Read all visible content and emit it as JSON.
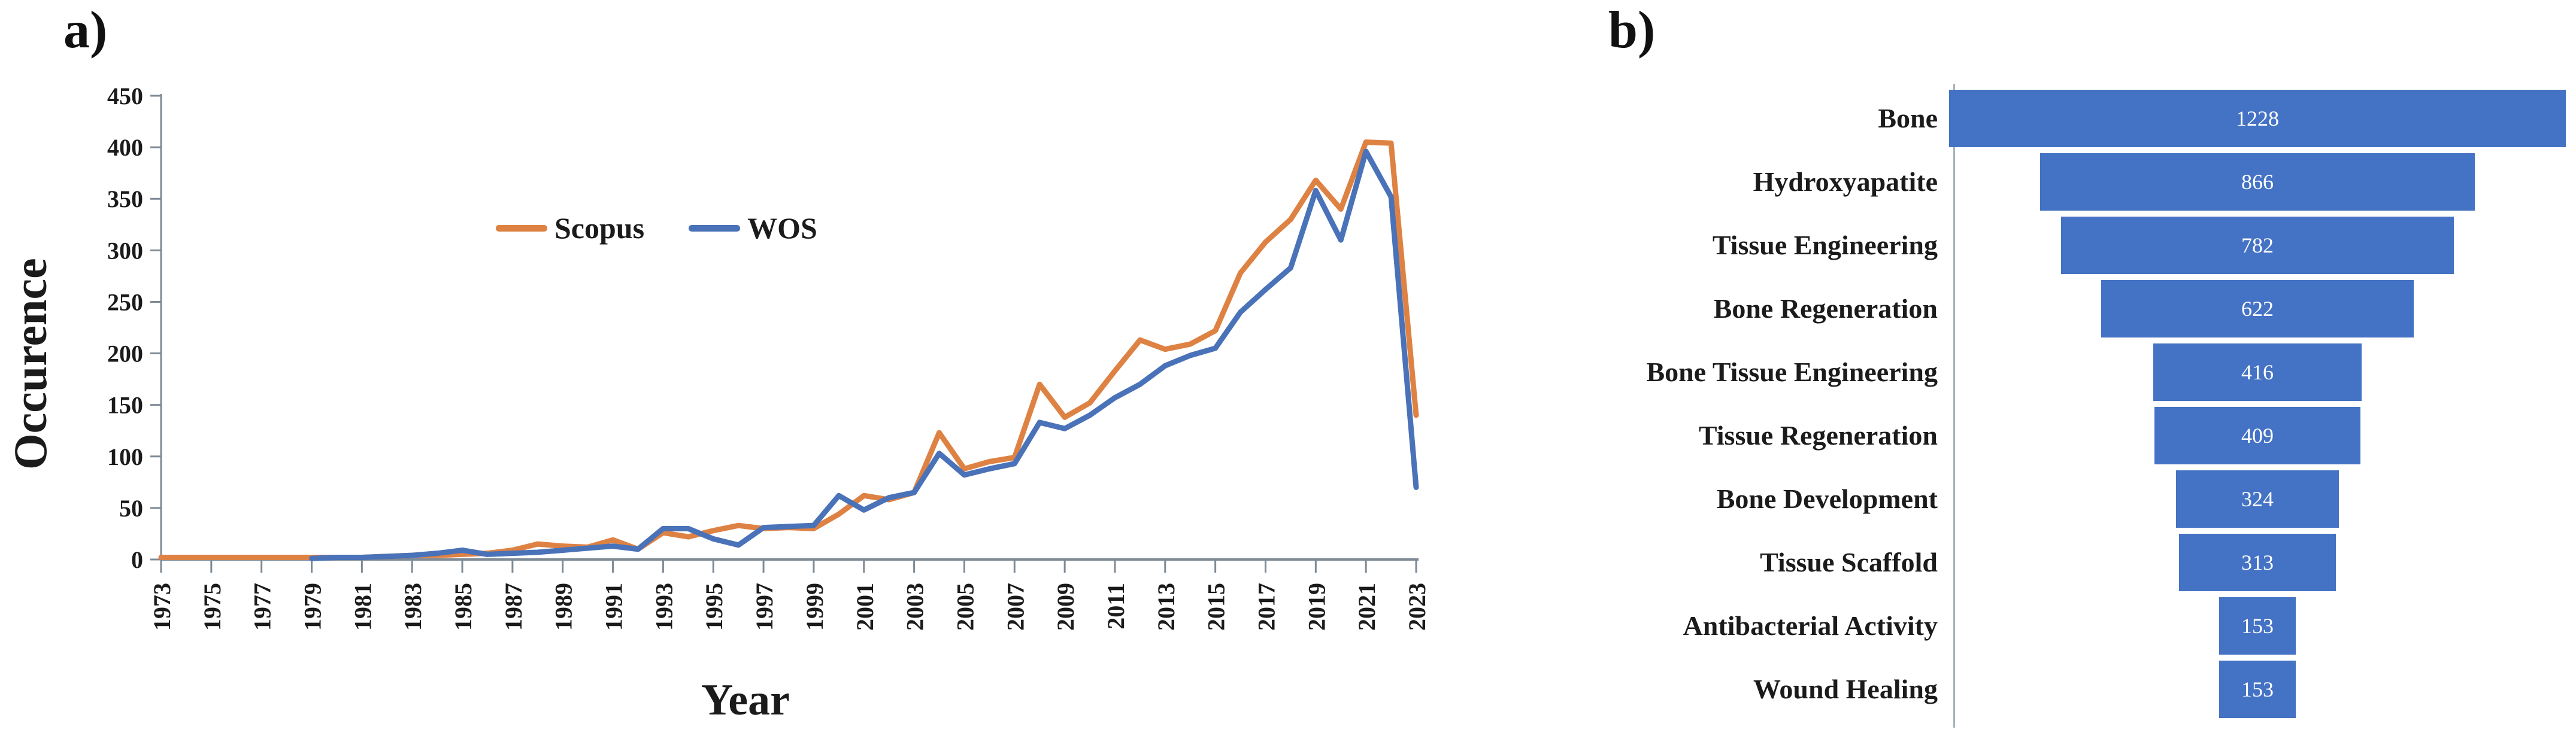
{
  "figure": {
    "panel_a_label": "a)",
    "panel_b_label": "b)"
  },
  "chart_data": [
    {
      "type": "line",
      "title": "",
      "xlabel": "Year",
      "ylabel": "Occurence",
      "ylim": [
        0,
        450
      ],
      "yticks": [
        0,
        50,
        100,
        150,
        200,
        250,
        300,
        350,
        400,
        450
      ],
      "xtick_labels": [
        "1973",
        "1975",
        "1977",
        "1979",
        "1981",
        "1983",
        "1985",
        "1987",
        "1989",
        "1991",
        "1993",
        "1995",
        "1997",
        "1999",
        "2001",
        "2003",
        "2005",
        "2007",
        "2009",
        "2011",
        "2013",
        "2015",
        "2017",
        "2019",
        "2021",
        "2023"
      ],
      "grid": false,
      "legend_position": "inside-top-center",
      "x": [
        1973,
        1974,
        1975,
        1976,
        1977,
        1978,
        1979,
        1980,
        1981,
        1982,
        1983,
        1984,
        1985,
        1986,
        1987,
        1988,
        1989,
        1990,
        1991,
        1992,
        1993,
        1994,
        1995,
        1996,
        1997,
        1998,
        1999,
        2000,
        2001,
        2002,
        2003,
        2004,
        2005,
        2006,
        2007,
        2008,
        2009,
        2010,
        2011,
        2012,
        2013,
        2014,
        2015,
        2016,
        2017,
        2018,
        2019,
        2020,
        2021,
        2022,
        2023
      ],
      "series": [
        {
          "name": "Scopus",
          "color": "#DE8244",
          "values": [
            2,
            2,
            2,
            2,
            2,
            2,
            2,
            2,
            2,
            3,
            4,
            4,
            5,
            6,
            9,
            15,
            13,
            12,
            19,
            10,
            26,
            22,
            28,
            33,
            30,
            31,
            30,
            44,
            62,
            58,
            65,
            123,
            88,
            95,
            99,
            170,
            138,
            152,
            183,
            213,
            204,
            209,
            222,
            278,
            308,
            330,
            368,
            340,
            405,
            404,
            140
          ]
        },
        {
          "name": "WOS",
          "color": "#4A72B8",
          "values": [
            null,
            null,
            null,
            null,
            null,
            null,
            1,
            2,
            2,
            3,
            4,
            6,
            9,
            5,
            6,
            7,
            9,
            11,
            13,
            10,
            30,
            30,
            20,
            14,
            31,
            32,
            33,
            62,
            48,
            60,
            65,
            103,
            82,
            88,
            93,
            133,
            127,
            140,
            157,
            170,
            188,
            198,
            205,
            240,
            262,
            283,
            358,
            310,
            396,
            352,
            70
          ]
        }
      ]
    },
    {
      "type": "bar",
      "subtype": "horizontal-centered-funnel",
      "title": "",
      "categories": [
        "Bone",
        "Hydroxyapatite",
        "Tissue Engineering",
        "Bone Regeneration",
        "Bone Tissue Engineering",
        "Tissue Regeneration",
        "Bone Development",
        "Tissue Scaffold",
        "Antibacterial Activity",
        "Wound Healing"
      ],
      "values": [
        1228,
        866,
        782,
        622,
        416,
        409,
        324,
        313,
        153,
        153
      ],
      "bar_color": "#4472C4",
      "value_label_color": "#FFFFFF"
    }
  ]
}
